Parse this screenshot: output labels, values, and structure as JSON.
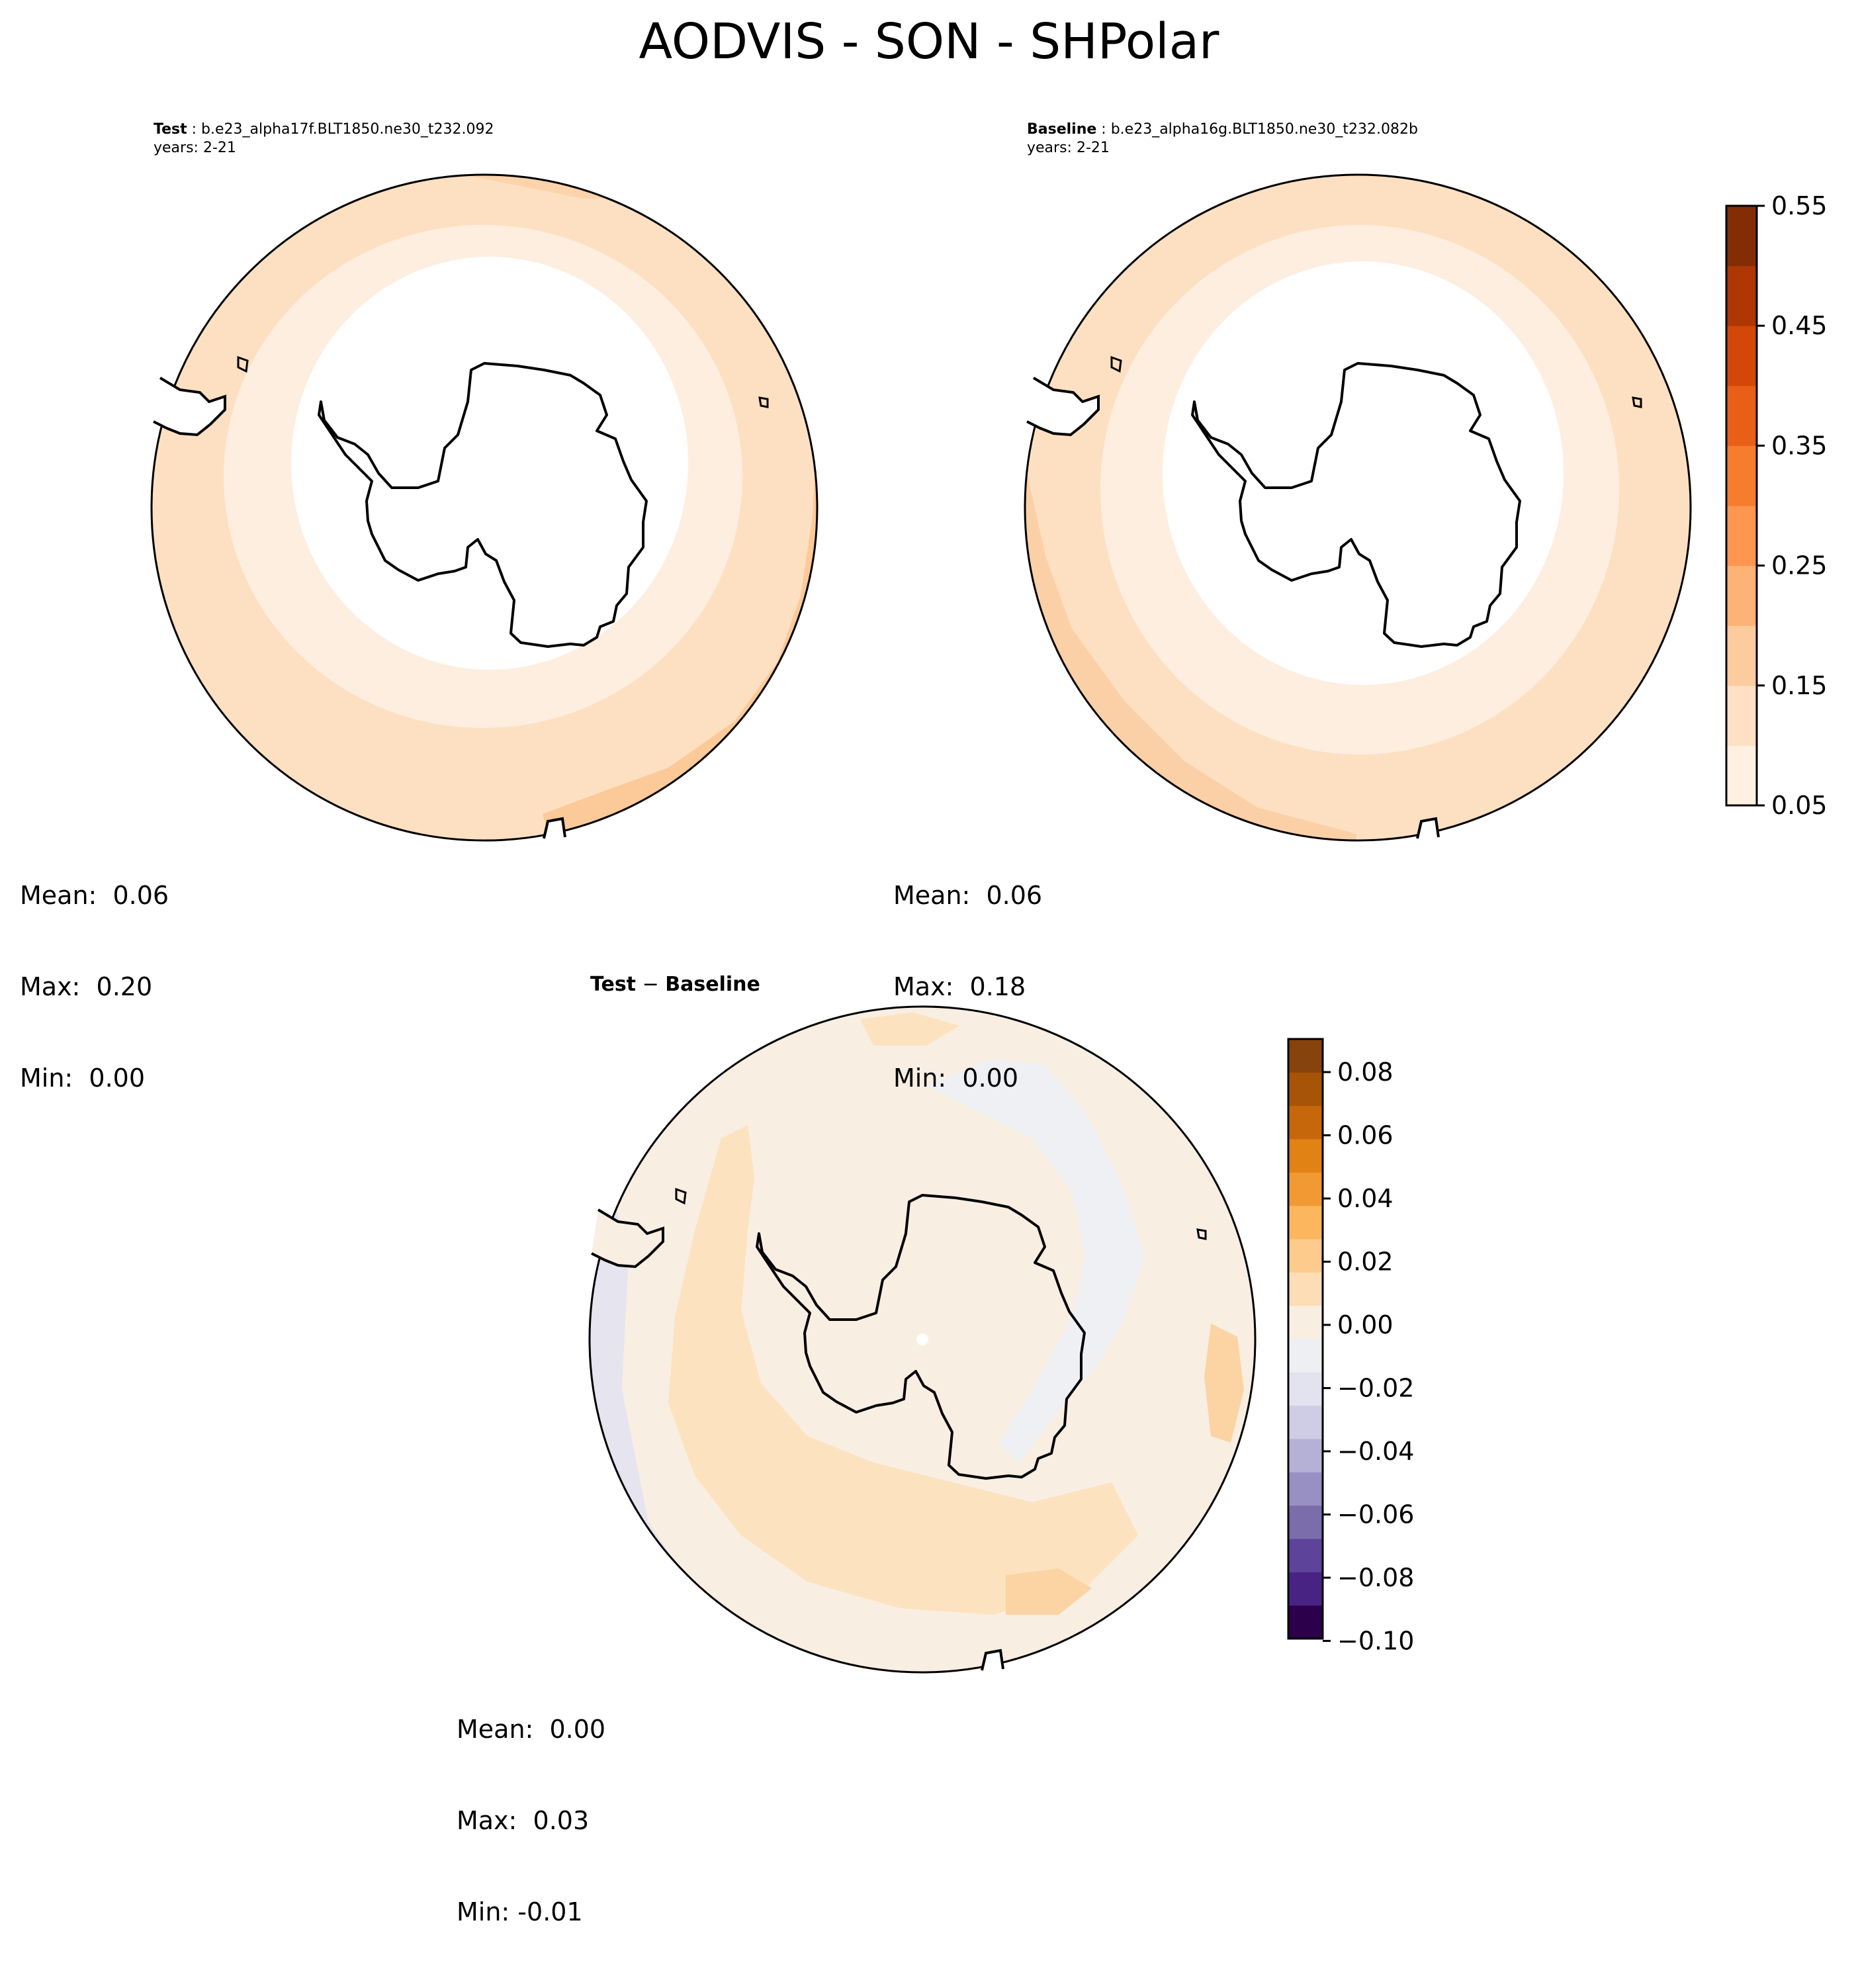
{
  "figure": {
    "title": "AODVIS - SON - SHPolar"
  },
  "chart_data": [
    {
      "type": "heatmap",
      "projection": "south-polar-stereographic",
      "case_role": "Test",
      "case_name": "b.e23_alpha17f.BLT1850.ne30_t232.092",
      "years": "years: 2-21",
      "stats": {
        "mean": "Mean:  0.06",
        "max": "Max:  0.20",
        "min": "Min:  0.00"
      },
      "colormap": "Oranges",
      "levels": [
        0.05,
        0.1,
        0.15,
        0.2,
        0.25,
        0.3,
        0.35,
        0.4,
        0.45,
        0.5,
        0.55
      ]
    },
    {
      "type": "heatmap",
      "projection": "south-polar-stereographic",
      "case_role": "Baseline",
      "case_name": "b.e23_alpha16g.BLT1850.ne30_t232.082b",
      "years": "years: 2-21",
      "stats": {
        "mean": "Mean:  0.06",
        "max": "Max:  0.18",
        "min": "Min:  0.00"
      },
      "colormap": "Oranges",
      "levels": [
        0.05,
        0.1,
        0.15,
        0.2,
        0.25,
        0.3,
        0.35,
        0.4,
        0.45,
        0.5,
        0.55
      ]
    },
    {
      "type": "heatmap",
      "projection": "south-polar-stereographic",
      "title_parts": [
        "Test",
        "Baseline"
      ],
      "title_sep": " − ",
      "stats": {
        "mean": "Mean:  0.00",
        "max": "Max:  0.03",
        "min": "Min: -0.01"
      },
      "colormap": "PuOr_r",
      "levels": [
        -0.1,
        -0.09,
        -0.08,
        -0.07,
        -0.06,
        -0.05,
        -0.04,
        -0.03,
        -0.02,
        -0.01,
        0.0,
        0.01,
        0.02,
        0.03,
        0.04,
        0.05,
        0.06,
        0.07,
        0.08,
        0.09
      ]
    }
  ],
  "colorbars": [
    {
      "ticks": [
        "0.05",
        "0.15",
        "0.25",
        "0.35",
        "0.45",
        "0.55"
      ],
      "colors": [
        "#fff0e2",
        "#fee0c4",
        "#fdcc9e",
        "#fdb276",
        "#fd9650",
        "#f67c2e",
        "#e95f17",
        "#d34708",
        "#ae3703",
        "#842d04"
      ]
    },
    {
      "ticks": [
        "0.08",
        "0.06",
        "0.04",
        "0.02",
        "0.00",
        "−0.02",
        "−0.04",
        "−0.06",
        "−0.08",
        "−0.10"
      ],
      "colors": [
        "#2d004b",
        "#492383",
        "#5e439a",
        "#7b6cac",
        "#988fc2",
        "#b5b0d5",
        "#cfcde5",
        "#e3e2ef",
        "#eeeff3",
        "#f8eee2",
        "#fdddb6",
        "#fdcb8c",
        "#fbb65e",
        "#f19a33",
        "#e08214",
        "#c7670b",
        "#a85407",
        "#86430b"
      ]
    }
  ]
}
